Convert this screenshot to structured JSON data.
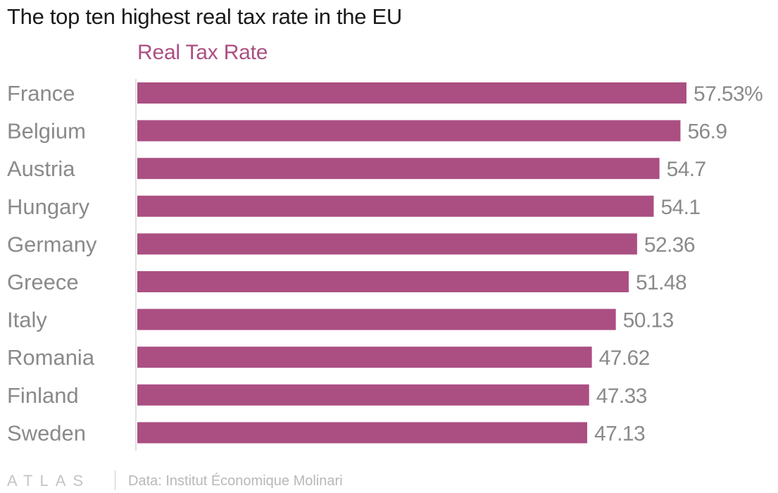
{
  "title": "The top ten highest real tax rate in the EU",
  "footer": {
    "logo": "ATLAS",
    "source": "Data: Institut Économique Molinari"
  },
  "colors": {
    "bar": "#ab4f82",
    "series_title": "#ab4f82",
    "axis": "#d6d6d6",
    "labels": "#8a8a8a"
  },
  "chart_data": {
    "type": "bar",
    "orientation": "horizontal",
    "title": "The top ten highest real tax rate in the EU",
    "categories": [
      "France",
      "Belgium",
      "Austria",
      "Hungary",
      "Germany",
      "Greece",
      "Italy",
      "Romania",
      "Finland",
      "Sweden"
    ],
    "series": [
      {
        "name": "Real Tax Rate",
        "values": [
          57.53,
          56.9,
          54.7,
          54.1,
          52.36,
          51.48,
          50.13,
          47.62,
          47.33,
          47.13
        ]
      }
    ],
    "value_labels": [
      "57.53%",
      "56.9",
      "54.7",
      "54.1",
      "52.36",
      "51.48",
      "50.13",
      "47.62",
      "47.33",
      "47.13"
    ],
    "xlim": [
      0,
      57.53
    ],
    "grid": false,
    "legend": "top"
  }
}
